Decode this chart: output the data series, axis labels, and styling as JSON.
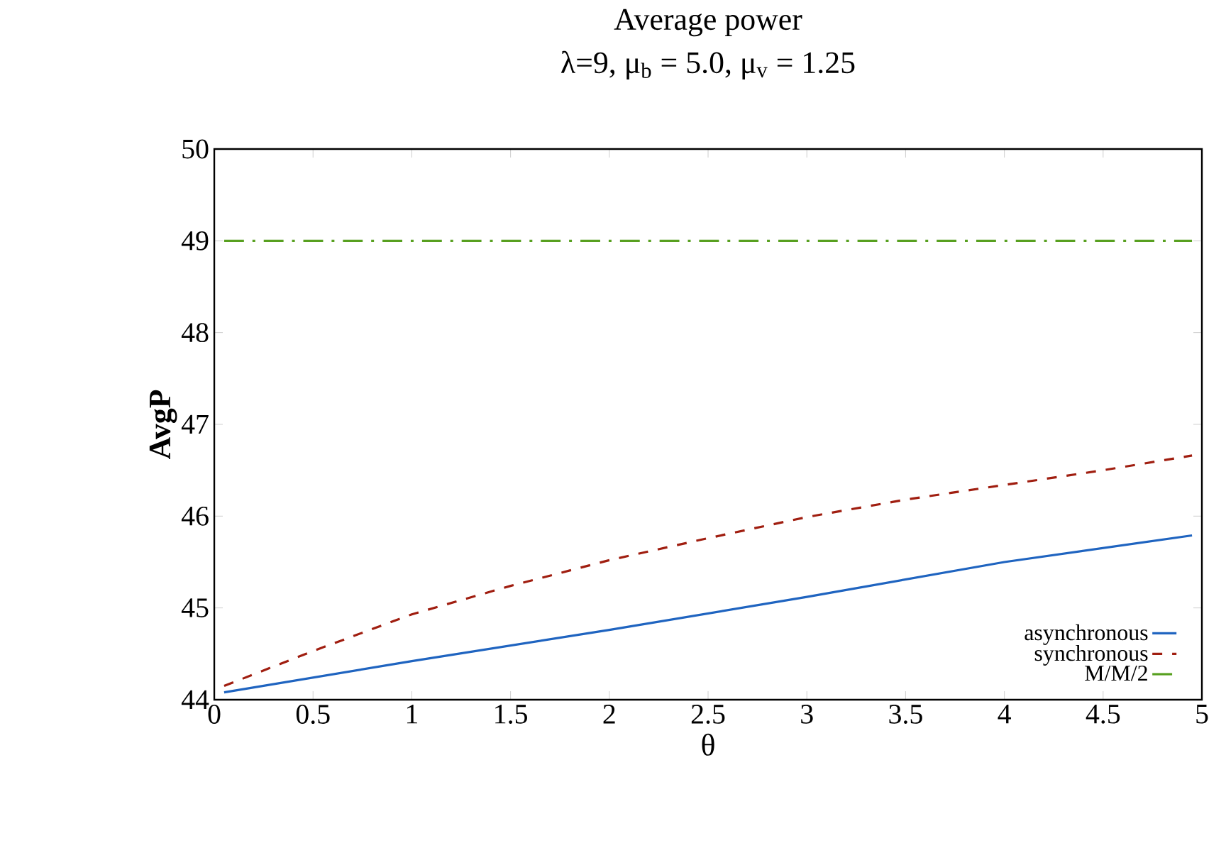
{
  "chart_data": {
    "type": "line",
    "title": "Average power",
    "subtitle": "λ=9, μ$_{b}$ = 5.0, μ$_{v}$ = 1.25",
    "xlabel": "θ",
    "ylabel": "AvgP",
    "xlim": [
      0,
      5
    ],
    "ylim": [
      44,
      50
    ],
    "xticks": [
      0,
      0.5,
      1,
      1.5,
      2,
      2.5,
      3,
      3.5,
      4,
      4.5,
      5
    ],
    "yticks": [
      44,
      45,
      46,
      47,
      48,
      49,
      50
    ],
    "grid": false,
    "legend": "bottom right",
    "marker": "none",
    "series": [
      {
        "name": "asynchronous",
        "color": "#1f64c0",
        "line_style": "solid",
        "x": [
          0.05,
          1,
          2,
          3,
          4,
          4.95
        ],
        "values": [
          44.08,
          44.42,
          44.76,
          45.12,
          45.5,
          45.79
        ]
      },
      {
        "name": "synchronous",
        "color": "#a01e10",
        "line_style": "dashed",
        "x": [
          0.05,
          0.5,
          1,
          1.5,
          2,
          2.5,
          3,
          3.5,
          4,
          4.5,
          4.95
        ],
        "values": [
          44.15,
          44.53,
          44.93,
          45.24,
          45.52,
          45.76,
          45.99,
          46.18,
          46.34,
          46.5,
          46.66
        ]
      },
      {
        "name": "M/M/2",
        "color": "#58a020",
        "line_style": "dashdot",
        "x": [
          0.05,
          4.95
        ],
        "values": [
          49,
          49
        ]
      }
    ]
  }
}
